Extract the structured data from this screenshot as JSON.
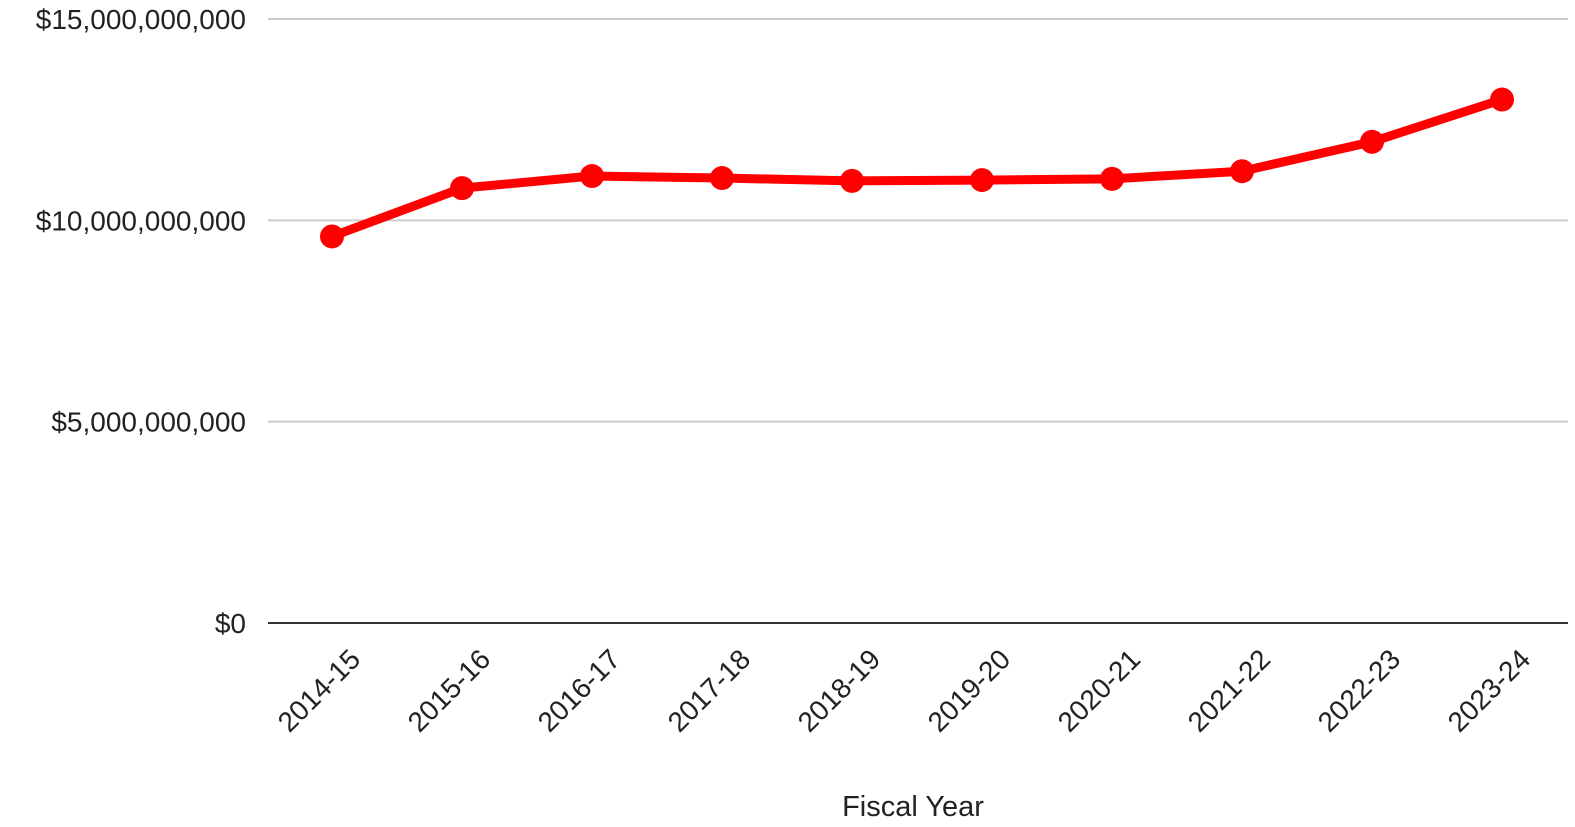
{
  "chart_data": {
    "type": "line",
    "title": "",
    "xlabel": "Fiscal Year",
    "ylabel": "",
    "categories": [
      "2014-15",
      "2015-16",
      "2016-17",
      "2017-18",
      "2018-19",
      "2019-20",
      "2020-21",
      "2021-22",
      "2022-23",
      "2023-24"
    ],
    "series": [
      {
        "values": [
          9600000000,
          10800000000,
          11100000000,
          11050000000,
          10980000000,
          11000000000,
          11030000000,
          11220000000,
          11950000000,
          13000000000
        ],
        "color": "#ff0000"
      }
    ],
    "ylim": [
      0,
      15000000000
    ],
    "y_ticks": [
      0,
      5000000000,
      10000000000,
      15000000000
    ],
    "y_tick_labels": [
      "$0",
      "$5,000,000,000",
      "$10,000,000,000",
      "$15,000,000,000"
    ],
    "grid": true,
    "legend": "none"
  }
}
